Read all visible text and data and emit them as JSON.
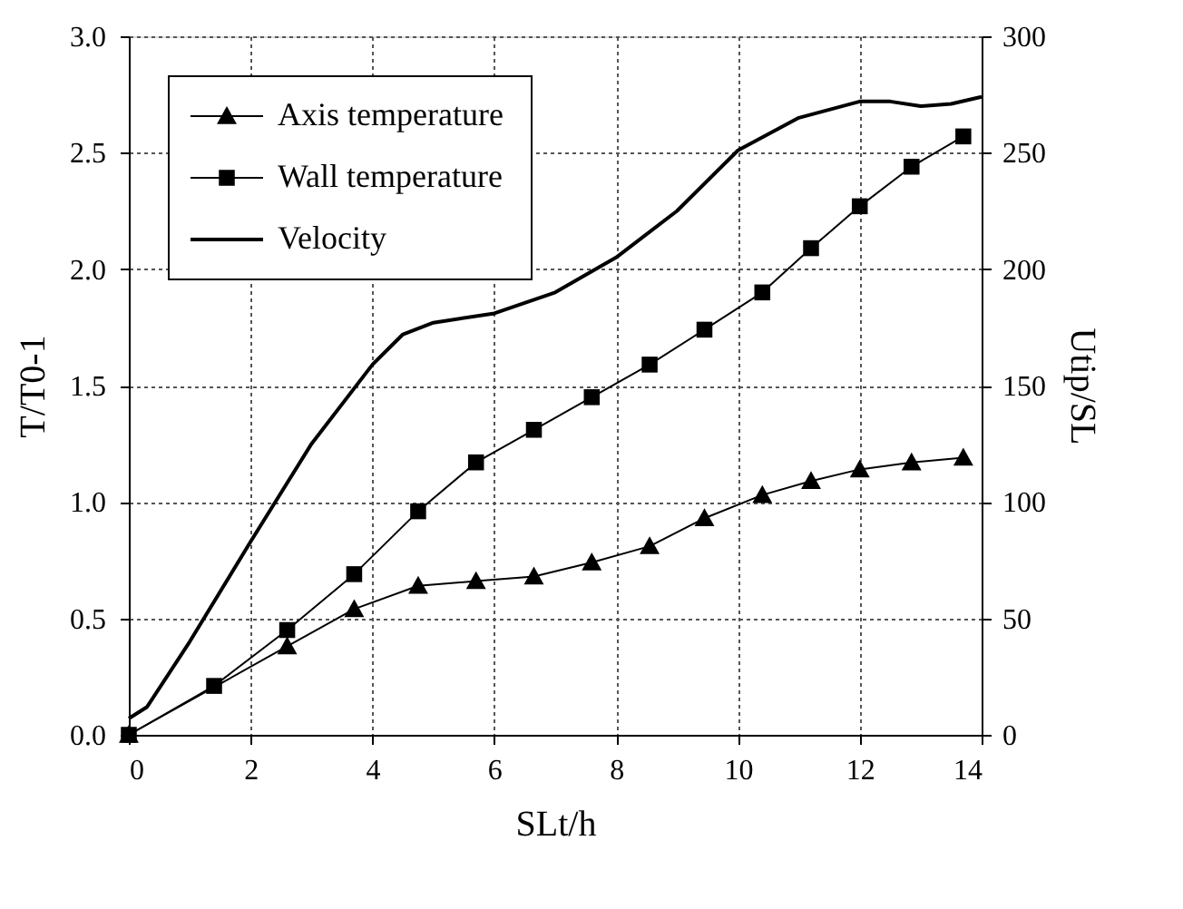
{
  "chart_data": {
    "type": "line",
    "xlabel": "SLt/h",
    "ylabel": "T/T0-1",
    "y2label": "Utip/SL",
    "xlim": [
      0,
      14
    ],
    "xticks": [
      0,
      2,
      4,
      6,
      8,
      10,
      12,
      14
    ],
    "ylim": [
      0,
      3.0
    ],
    "yticks": [
      {
        "value": 0,
        "label": "0.0"
      },
      0.5,
      {
        "value": 1,
        "label": "1.0"
      },
      1.5,
      {
        "value": 2,
        "label": "2.0"
      },
      2.5,
      {
        "value": 3,
        "label": "3.0"
      }
    ],
    "y2lim": [
      0,
      300
    ],
    "y2ticks": [
      0,
      50,
      100,
      150,
      200,
      250,
      300
    ],
    "grid": true,
    "legend": "top left",
    "series": [
      {
        "name": "Axis temperature",
        "color": "#000000",
        "marker": "triangle",
        "x": [
          0,
          1.4,
          2.6,
          3.7,
          4.75,
          5.7,
          6.65,
          7.6,
          8.55,
          9.45,
          10.4,
          11.2,
          12.0,
          12.85,
          13.7
        ],
        "values": [
          0.0,
          null,
          0.38,
          0.54,
          0.64,
          0.66,
          0.68,
          0.74,
          0.81,
          0.93,
          1.03,
          1.09,
          1.14,
          1.17,
          1.19
        ]
      },
      {
        "name": "Wall temperature",
        "color": "#000000",
        "marker": "square",
        "x": [
          0,
          1.4,
          2.6,
          3.7,
          4.75,
          5.7,
          6.65,
          7.6,
          8.55,
          9.45,
          10.4,
          11.2,
          12.0,
          12.85,
          13.7
        ],
        "values": [
          0.0,
          0.21,
          0.45,
          0.69,
          0.96,
          1.17,
          1.31,
          1.45,
          1.59,
          1.74,
          1.9,
          2.09,
          2.27,
          2.44,
          2.57
        ]
      },
      {
        "name": "Velocity",
        "color": "#000000",
        "marker": "none",
        "axis": "y2",
        "x": [
          0,
          0.3,
          1,
          2,
          3,
          4,
          4.5,
          5,
          6,
          7,
          8,
          9,
          10,
          11,
          12,
          12.5,
          13,
          13.5,
          14
        ],
        "values": [
          7,
          12,
          40,
          83,
          125,
          159,
          172,
          177,
          181,
          190,
          205,
          225,
          251,
          265,
          272,
          272,
          270,
          271,
          274
        ]
      }
    ]
  }
}
